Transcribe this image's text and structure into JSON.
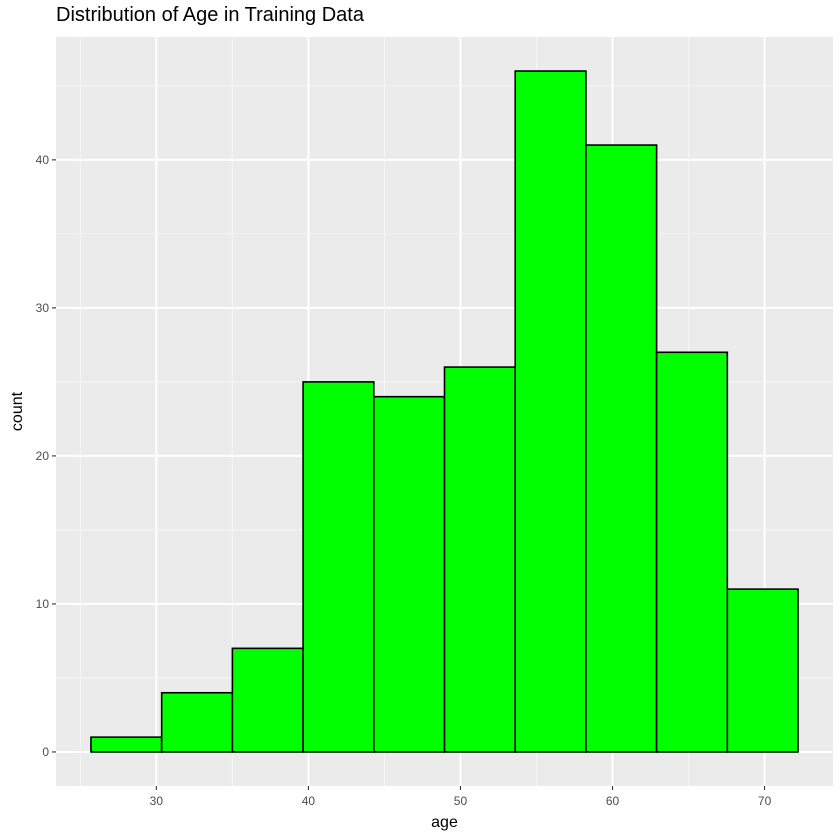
{
  "chart_data": {
    "type": "bar",
    "title": "Distribution of Age in Training Data",
    "xlabel": "age",
    "ylabel": "count",
    "bin_width": 4.65,
    "bins": [
      {
        "x0": 25.7,
        "x1": 30.35,
        "count": 1
      },
      {
        "x0": 30.35,
        "x1": 35.0,
        "count": 4
      },
      {
        "x0": 35.0,
        "x1": 39.65,
        "count": 7
      },
      {
        "x0": 39.65,
        "x1": 44.3,
        "count": 25
      },
      {
        "x0": 44.3,
        "x1": 48.95,
        "count": 24
      },
      {
        "x0": 48.95,
        "x1": 53.6,
        "count": 26
      },
      {
        "x0": 53.6,
        "x1": 58.25,
        "count": 46
      },
      {
        "x0": 58.25,
        "x1": 62.9,
        "count": 41
      },
      {
        "x0": 62.9,
        "x1": 67.55,
        "count": 27
      },
      {
        "x0": 67.55,
        "x1": 72.2,
        "count": 11
      }
    ],
    "xlim": [
      23.4,
      74.5
    ],
    "ylim": [
      -2.3,
      48.3
    ],
    "x_ticks": [
      30,
      40,
      50,
      60,
      70
    ],
    "x_tick_labels": [
      "30",
      "40",
      "50",
      "60",
      "70"
    ],
    "y_ticks": [
      0,
      10,
      20,
      30,
      40
    ],
    "y_tick_labels": [
      "0",
      "10",
      "20",
      "30",
      "40"
    ],
    "grid": true,
    "colors": {
      "bar_fill": "#00ff00",
      "bar_stroke": "#000000",
      "panel_background": "#ebebeb",
      "grid_major": "#ffffff",
      "grid_minor": "#f5f5f5",
      "tick_label": "#4d4d4d"
    }
  }
}
